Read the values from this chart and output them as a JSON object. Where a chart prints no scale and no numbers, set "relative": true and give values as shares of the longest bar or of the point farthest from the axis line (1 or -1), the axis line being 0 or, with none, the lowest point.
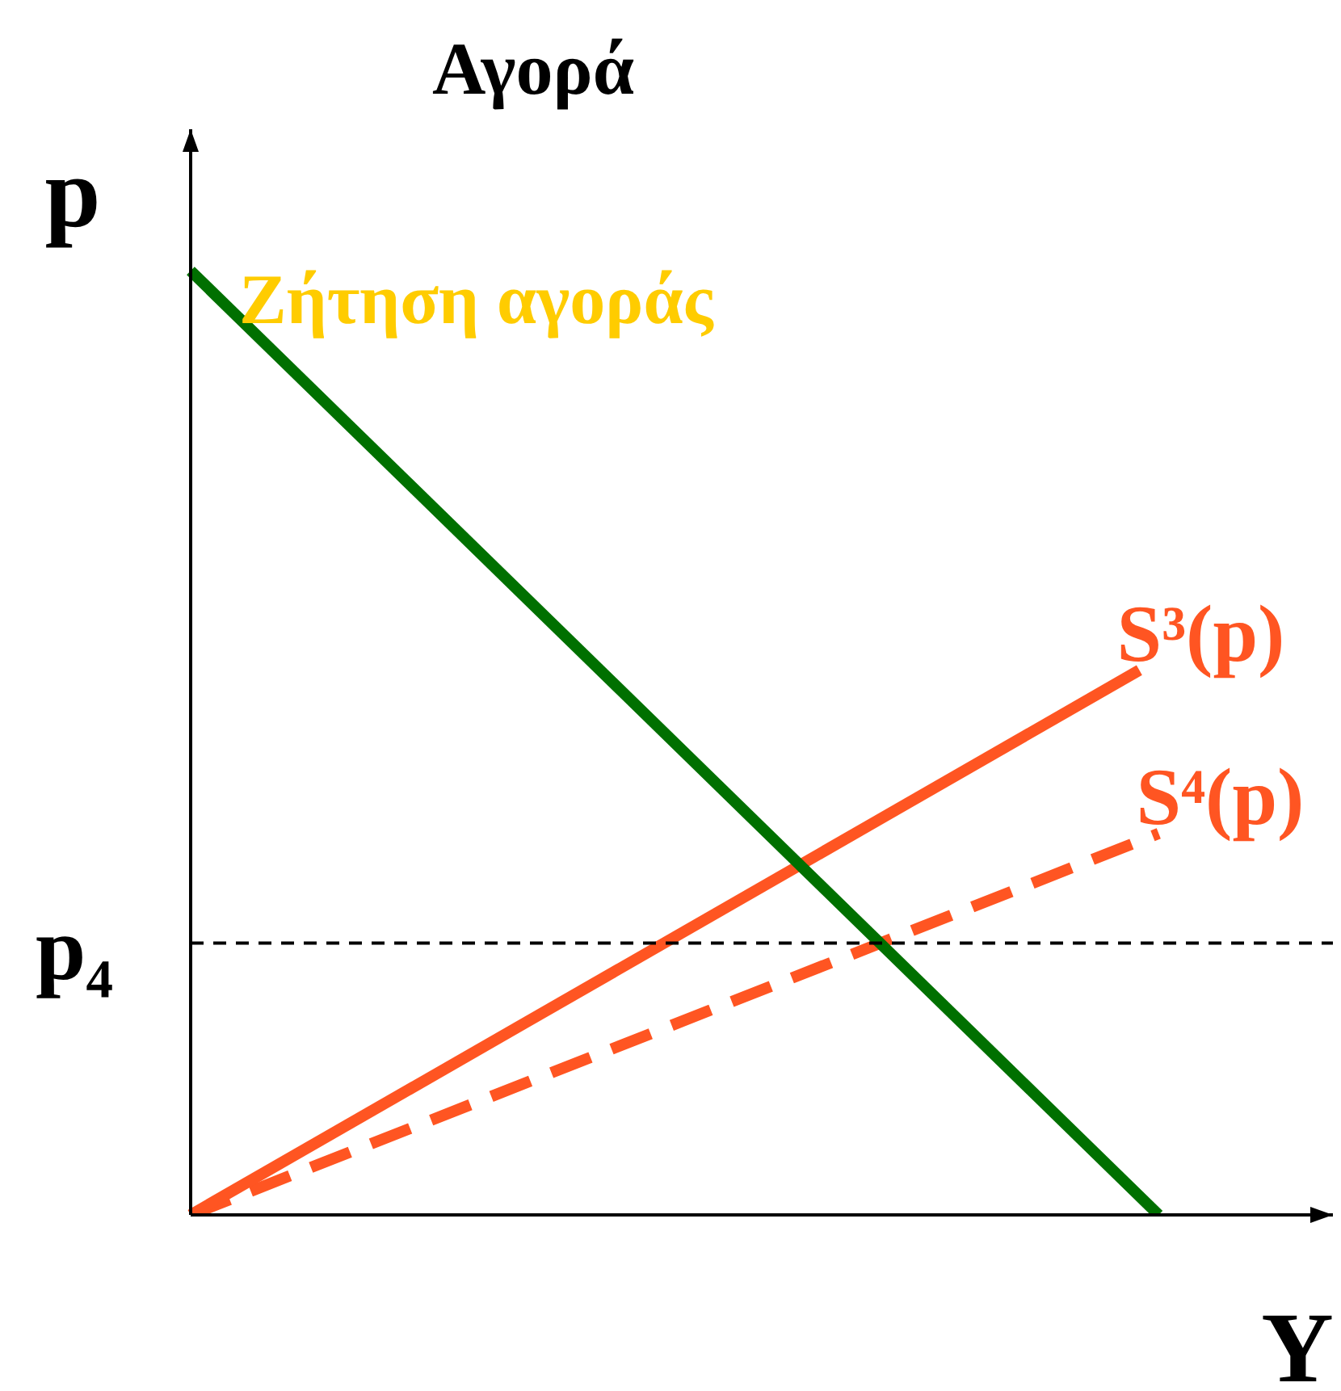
{
  "chart_data": {
    "type": "line",
    "title": "Αγορά",
    "xlabel": "Y",
    "ylabel": "p",
    "relative": true,
    "legend": false,
    "marker": "none",
    "annotations": [
      "Ζήτηση αγοράς"
    ],
    "categories": [
      null,
      null,
      null,
      null,
      null,
      null,
      null,
      null,
      null,
      null,
      null,
      null,
      null,
      null,
      null,
      null,
      null,
      null,
      null,
      null,
      null,
      null,
      null,
      null,
      null,
      null,
      null,
      null,
      null,
      null,
      null,
      null,
      null,
      null,
      null,
      null,
      null,
      null,
      null,
      null,
      null,
      null,
      null,
      null,
      null,
      null,
      null,
      null,
      null,
      null,
      null,
      null,
      null,
      null,
      null,
      null,
      null,
      null,
      null,
      null
    ],
    "series": [
      {
        "color": "#007000",
        "values": [
          1,
          null,
          null,
          null,
          null,
          null,
          null,
          null,
          null,
          null,
          null,
          null,
          null,
          null,
          null,
          null,
          null,
          null,
          null,
          null,
          null,
          null,
          null,
          null,
          null,
          null,
          null,
          null,
          null,
          null,
          null,
          null,
          null,
          null,
          null,
          null,
          null,
          null,
          null,
          null,
          null,
          null,
          null,
          null,
          null,
          null,
          null,
          null,
          null,
          null,
          0,
          null,
          null,
          null,
          null,
          null,
          null,
          null,
          null,
          null
        ],
        "line_style": "solid"
      },
      {
        "name": "S³(p)",
        "color": "#ff5522",
        "values": [
          0,
          null,
          null,
          null,
          null,
          null,
          null,
          null,
          null,
          null,
          null,
          null,
          null,
          null,
          null,
          null,
          null,
          null,
          null,
          null,
          null,
          null,
          null,
          null,
          null,
          null,
          null,
          null,
          null,
          null,
          null,
          null,
          null,
          null,
          null,
          null,
          null,
          null,
          null,
          null,
          null,
          null,
          null,
          null,
          null,
          null,
          null,
          null,
          null,
          0.577,
          null,
          null,
          null,
          null,
          null,
          null,
          null,
          null,
          null,
          null
        ],
        "line_style": "solid"
      },
      {
        "name": "S⁴(p)",
        "color": "#ff5522",
        "values": [
          0,
          null,
          null,
          null,
          null,
          null,
          null,
          null,
          null,
          null,
          null,
          null,
          null,
          null,
          null,
          null,
          null,
          null,
          null,
          null,
          null,
          null,
          null,
          null,
          null,
          null,
          null,
          null,
          null,
          null,
          null,
          null,
          null,
          null,
          null,
          null,
          null,
          null,
          null,
          null,
          null,
          null,
          null,
          null,
          null,
          null,
          null,
          null,
          null,
          null,
          0.404,
          null,
          null,
          null,
          null,
          null,
          null,
          null,
          null,
          null
        ],
        "line_style": "dashed"
      }
    ],
    "ref_lines": [
      {
        "axis": "y",
        "value": 0.288,
        "label": "p₄",
        "color": "#000000",
        "line_style": "dashed"
      }
    ]
  }
}
